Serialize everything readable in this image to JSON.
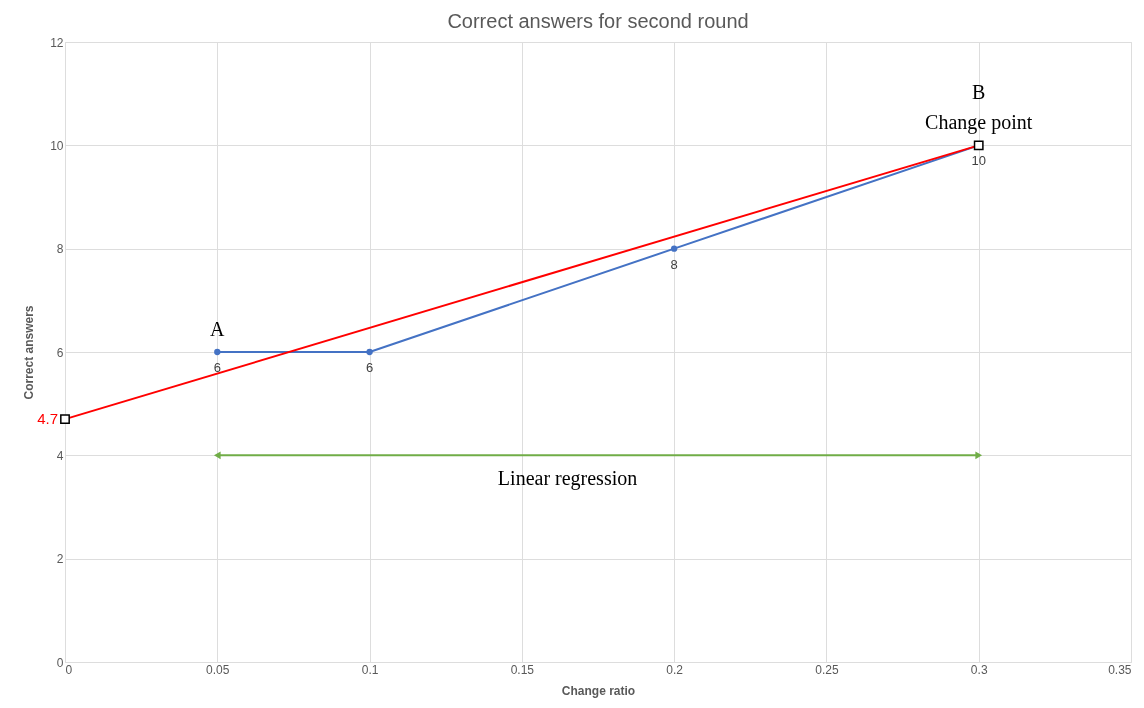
{
  "chart_data": {
    "type": "line",
    "title": "Correct answers for second round",
    "xlabel": "Change ratio",
    "ylabel": "Correct answers",
    "x": [
      0.05,
      0.1,
      0.2,
      0.3
    ],
    "series": [
      {
        "color": "#4472c4",
        "values": [
          6,
          6,
          8,
          10
        ],
        "marker": "circle",
        "value_labels": [
          "6",
          "6",
          "8",
          "10"
        ]
      },
      {
        "type": "line",
        "color": "#ff0000",
        "x": [
          0,
          0.3
        ],
        "values": [
          4.7,
          10
        ],
        "marker": "square",
        "value_labels": [
          "4.7",
          null
        ]
      },
      {
        "type": "line",
        "color": "#70ad47",
        "x": [
          0.05,
          0.3
        ],
        "values": [
          4,
          4
        ],
        "marker": "triangle"
      }
    ],
    "annotations": [
      {
        "text": "A",
        "x": 0.05,
        "y": 6
      },
      {
        "text": "B",
        "x": 0.3,
        "y": 10
      },
      {
        "text": "Change point",
        "x": 0.3,
        "y": 10
      },
      {
        "text": "Linear regression",
        "x": 0.165,
        "y": 4
      }
    ],
    "xlim": [
      0,
      0.35
    ],
    "xticks": [
      0,
      0.05,
      0.1,
      0.15,
      0.2,
      0.25,
      0.3,
      0.35
    ],
    "ylim": [
      0,
      12
    ],
    "yticks": [
      0,
      2,
      4,
      6,
      8,
      10,
      12
    ],
    "grid": true
  }
}
